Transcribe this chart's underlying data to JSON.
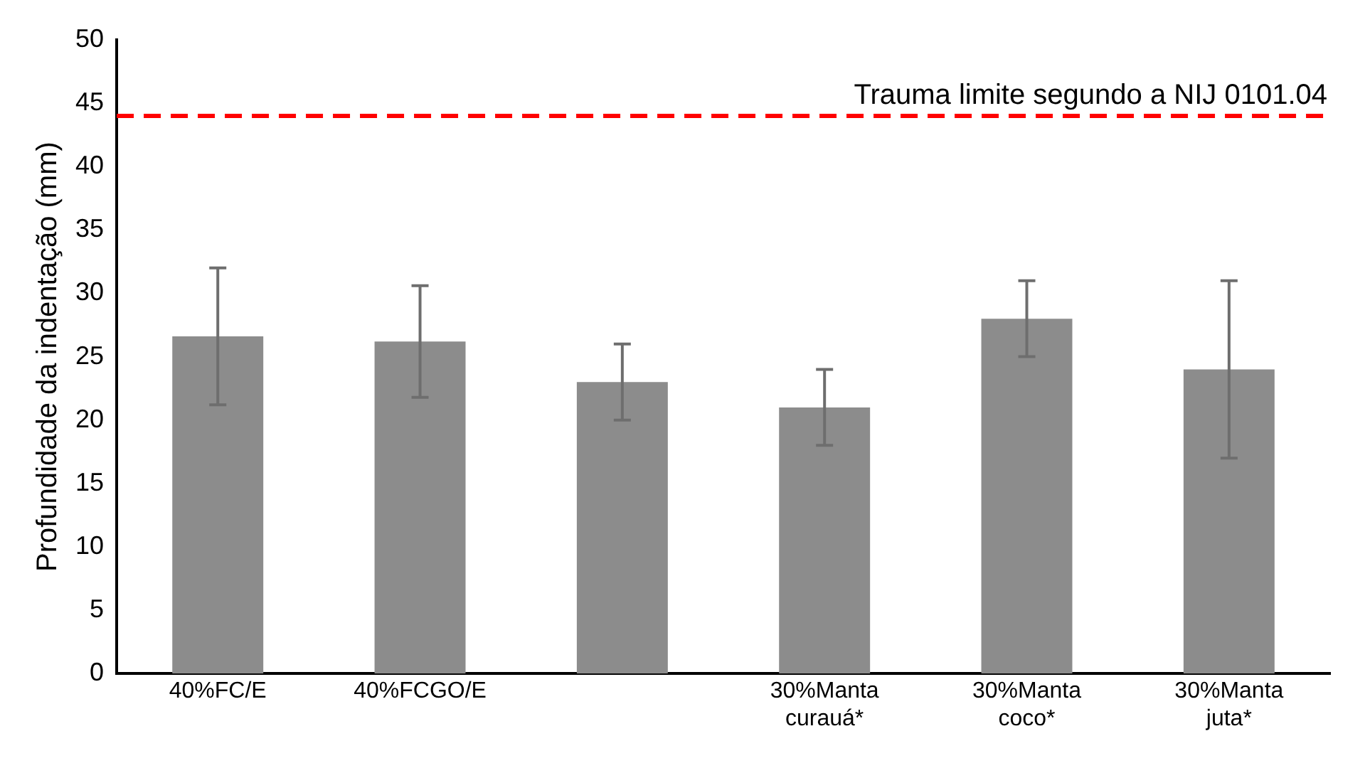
{
  "chart_data": {
    "type": "bar",
    "ylabel": "Profundidade da indentação (mm)",
    "categories": [
      "40%FC/E",
      "40%FCGO/E",
      null,
      "30%Manta curauá*",
      "30%Manta coco*",
      "30%Manta juta*"
    ],
    "values": [
      26.6,
      26.2,
      23,
      21,
      28,
      24
    ],
    "errors": [
      5.4,
      4.4,
      3,
      3,
      3,
      7
    ],
    "color": "#8c8c8c",
    "ylim": [
      0,
      50
    ],
    "yticks": [
      0,
      5,
      10,
      15,
      20,
      25,
      30,
      35,
      40,
      45,
      50
    ],
    "grid": false,
    "legend": false,
    "ref_lines": [
      {
        "axis": "y",
        "value": 44,
        "label": "Trauma limite segundo a NIJ 0101.04",
        "color": "#ff0000",
        "line_style": "dashed"
      }
    ]
  }
}
